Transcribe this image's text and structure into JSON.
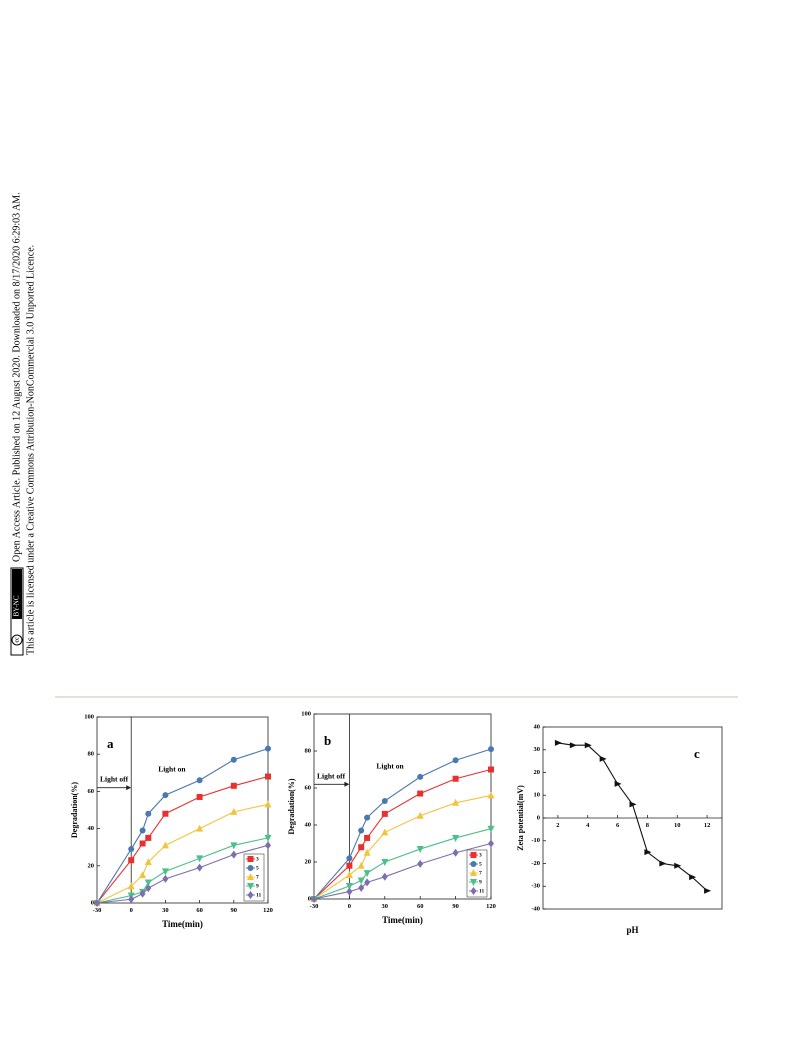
{
  "sidebar": {
    "line1": "Open Access Article. Published on 12 August 2020. Downloaded on 8/17/2020 6:29:03 AM.",
    "line2": "This article is licensed under a Creative Commons Attribution-NonCommercial 3.0 Unported Licence.",
    "badge_cc": "cc",
    "badge_text": "BY-NC"
  },
  "chart_data": [
    {
      "type": "line",
      "panel_label": "a",
      "label_corner": "left",
      "xlabel": "Time(min)",
      "ylabel": "Degradation(%)",
      "annotations": [
        "Light off",
        "Light on"
      ],
      "x": [
        -30,
        0,
        10,
        15,
        30,
        60,
        90,
        120
      ],
      "xlim": [
        -30,
        120
      ],
      "xticks": [
        -30,
        0,
        30,
        60,
        90,
        120
      ],
      "ylim": [
        0,
        100
      ],
      "yticks": [
        0,
        20,
        40,
        60,
        80,
        100
      ],
      "series": [
        {
          "name": "3",
          "color": "#e8312f",
          "marker": "square",
          "values": [
            0,
            23,
            32,
            35,
            48,
            57,
            63,
            68
          ]
        },
        {
          "name": "5",
          "color": "#4a78b0",
          "marker": "circle",
          "values": [
            0,
            29,
            39,
            48,
            58,
            66,
            77,
            83
          ]
        },
        {
          "name": "7",
          "color": "#f2c43e",
          "marker": "triangle-up",
          "values": [
            0,
            9,
            15,
            22,
            31,
            40,
            49,
            53
          ]
        },
        {
          "name": "9",
          "color": "#4cc08a",
          "marker": "triangle-down",
          "values": [
            0,
            4,
            6,
            11,
            17,
            24,
            31,
            35
          ]
        },
        {
          "name": "11",
          "color": "#7b6fb0",
          "marker": "diamond",
          "values": [
            0,
            2,
            5,
            8,
            13,
            19,
            26,
            31
          ]
        }
      ]
    },
    {
      "type": "line",
      "panel_label": "b",
      "label_corner": "left",
      "xlabel": "Time(min)",
      "ylabel": "Degradation(%)",
      "annotations": [
        "Light off",
        "Light on"
      ],
      "x": [
        -30,
        0,
        10,
        15,
        30,
        60,
        90,
        120
      ],
      "xlim": [
        -30,
        120
      ],
      "xticks": [
        -30,
        0,
        30,
        60,
        90,
        120
      ],
      "ylim": [
        0,
        100
      ],
      "yticks": [
        0,
        20,
        40,
        60,
        80,
        100
      ],
      "series": [
        {
          "name": "3",
          "color": "#e8312f",
          "marker": "square",
          "values": [
            0,
            18,
            28,
            33,
            46,
            57,
            65,
            70
          ]
        },
        {
          "name": "5",
          "color": "#4a78b0",
          "marker": "circle",
          "values": [
            0,
            22,
            37,
            44,
            53,
            66,
            75,
            81
          ]
        },
        {
          "name": "7",
          "color": "#f2c43e",
          "marker": "triangle-up",
          "values": [
            0,
            13,
            18,
            25,
            36,
            45,
            52,
            56
          ]
        },
        {
          "name": "9",
          "color": "#4cc08a",
          "marker": "triangle-down",
          "values": [
            0,
            7,
            10,
            14,
            20,
            27,
            33,
            38
          ]
        },
        {
          "name": "11",
          "color": "#7b6fb0",
          "marker": "diamond",
          "values": [
            0,
            4,
            6,
            9,
            12,
            19,
            25,
            30
          ]
        }
      ]
    },
    {
      "type": "line",
      "panel_label": "c",
      "label_corner": "right",
      "xlabel": "pH",
      "ylabel": "Zeta potential(mV)",
      "x_axis": "zero",
      "x": [
        2,
        3,
        4,
        5,
        6,
        7,
        8,
        9,
        10,
        11,
        12
      ],
      "xlim": [
        1,
        13
      ],
      "xticks": [
        2,
        4,
        6,
        8,
        10,
        12
      ],
      "ylim": [
        -40,
        40
      ],
      "yticks": [
        -40,
        -30,
        -20,
        -10,
        0,
        10,
        20,
        30,
        40
      ],
      "series": [
        {
          "color": "#111111",
          "marker": "triangle-right",
          "values": [
            33,
            32,
            32,
            26,
            15,
            6,
            -15,
            -20,
            -21,
            -26,
            -32
          ]
        }
      ]
    }
  ]
}
